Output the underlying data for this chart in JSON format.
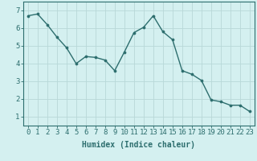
{
  "x": [
    0,
    1,
    2,
    3,
    4,
    5,
    6,
    7,
    8,
    9,
    10,
    11,
    12,
    13,
    14,
    15,
    16,
    17,
    18,
    19,
    20,
    21,
    22,
    23
  ],
  "y": [
    6.7,
    6.8,
    6.2,
    5.5,
    4.9,
    4.0,
    4.4,
    4.35,
    4.2,
    3.6,
    4.65,
    5.75,
    6.05,
    6.7,
    5.8,
    5.35,
    3.6,
    3.4,
    3.05,
    1.95,
    1.85,
    1.65,
    1.65,
    1.3
  ],
  "line_color": "#2d6e6e",
  "marker": "o",
  "marker_size": 2.2,
  "bg_color": "#d4f0f0",
  "grid_color": "#b8d8d8",
  "xlabel": "Humidex (Indice chaleur)",
  "xlabel_fontsize": 7,
  "tick_fontsize": 6.5,
  "ylim": [
    0.5,
    7.5
  ],
  "xlim": [
    -0.5,
    23.5
  ],
  "yticks": [
    1,
    2,
    3,
    4,
    5,
    6,
    7
  ],
  "xticks": [
    0,
    1,
    2,
    3,
    4,
    5,
    6,
    7,
    8,
    9,
    10,
    11,
    12,
    13,
    14,
    15,
    16,
    17,
    18,
    19,
    20,
    21,
    22,
    23
  ],
  "xtick_labels": [
    "0",
    "1",
    "2",
    "3",
    "4",
    "5",
    "6",
    "7",
    "8",
    "9",
    "10",
    "11",
    "12",
    "13",
    "14",
    "15",
    "16",
    "17",
    "18",
    "19",
    "20",
    "21",
    "22",
    "23"
  ],
  "line_width": 1.0
}
